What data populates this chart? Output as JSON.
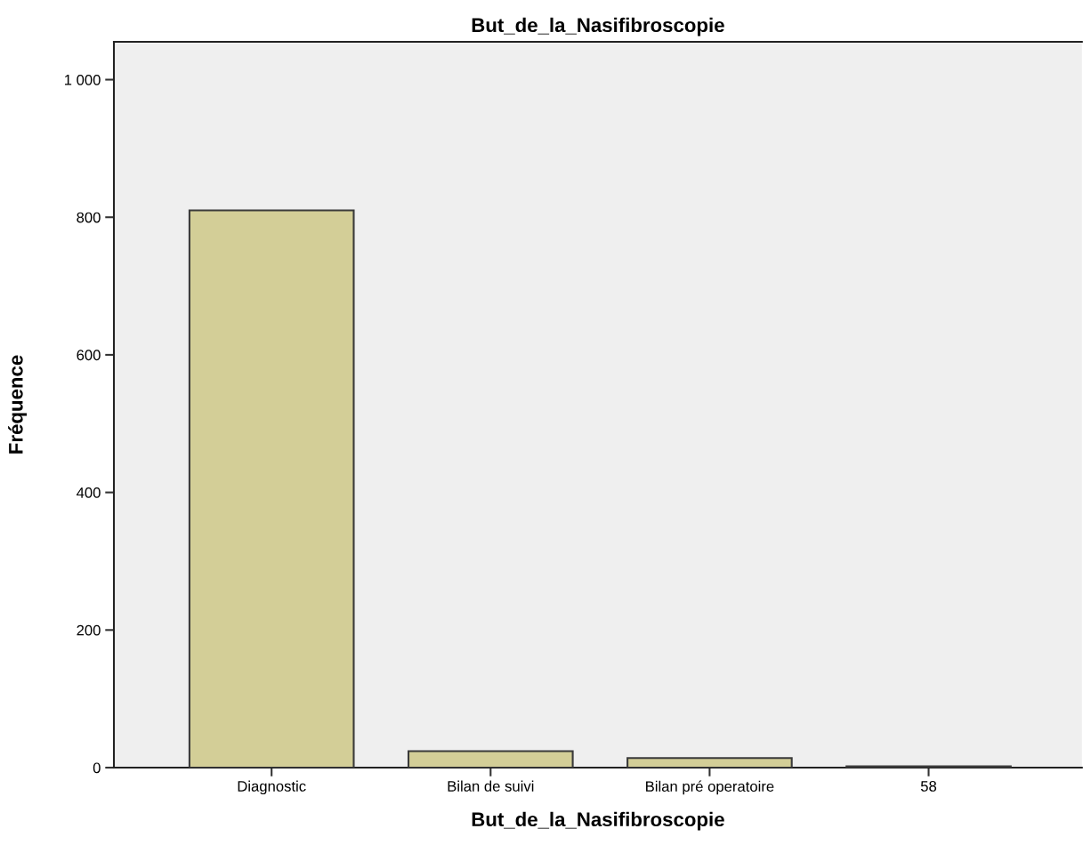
{
  "chart_data": {
    "type": "bar",
    "title": "But_de_la_Nasifibroscopie",
    "xlabel": "But_de_la_Nasifibroscopie",
    "ylabel": "Fréquence",
    "categories": [
      "Diagnostic",
      "Bilan de suivi",
      "Bilan pré operatoire",
      "58"
    ],
    "series": [
      {
        "color": "#d3ce97",
        "values": [
          810,
          24,
          14,
          2
        ]
      }
    ],
    "ylim": [
      0,
      1055
    ],
    "yticks": [
      0,
      200,
      400,
      600,
      800,
      {
        "value": 1000,
        "label": "1 000"
      }
    ],
    "grid": false,
    "legend": false
  }
}
